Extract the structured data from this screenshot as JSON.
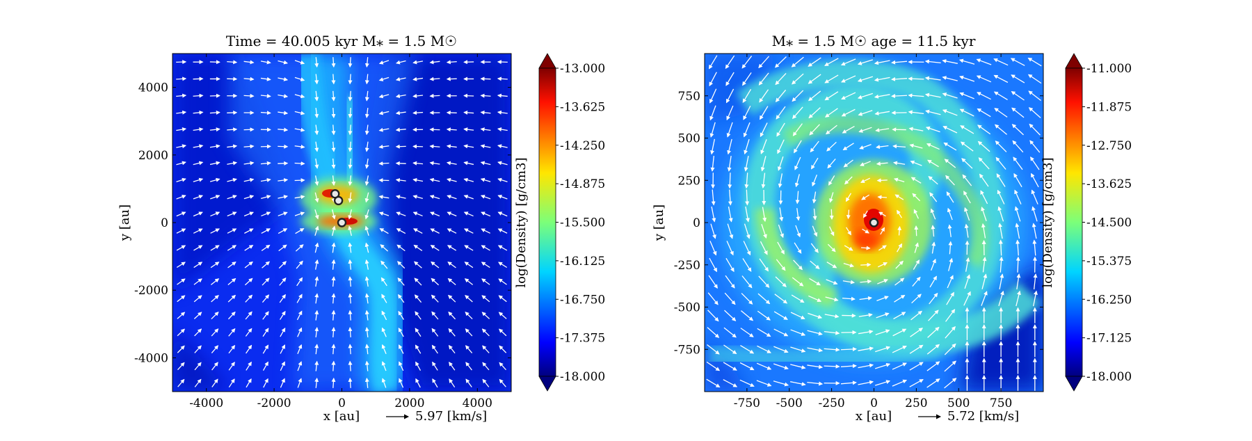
{
  "chart_data": [
    {
      "type": "heatmap",
      "title": "Time = 40.005 kyr    M$_*$ = 1.5 M$_\\odot$",
      "title_display": "Time = 40.005 kyr    M⁎ = 1.5 M☉",
      "xlabel": "x [au]",
      "ylabel": "y [au]",
      "xlim": [
        -5000,
        5000
      ],
      "ylim": [
        -5000,
        5000
      ],
      "xticks": [
        -4000,
        -2000,
        0,
        2000,
        4000
      ],
      "yticks": [
        -4000,
        -2000,
        0,
        2000,
        4000
      ],
      "xtick_labels": [
        "-4000",
        "-2000",
        "0",
        "2000",
        "4000"
      ],
      "ytick_labels": [
        "-4000",
        "-2000",
        "0",
        "2000",
        "4000"
      ],
      "vector_key_label": "5.97 [km/s]",
      "colorbar": {
        "label": "log(Density) [g/cm3]",
        "min": -18.0,
        "max": -13.0,
        "ticks": [
          "-13.000",
          "-13.625",
          "-14.250",
          "-14.875",
          "-15.500",
          "-16.125",
          "-16.750",
          "-17.375",
          "-18.000"
        ],
        "colormap": "jet"
      },
      "structures": [
        {
          "kind": "filament",
          "x": [
            -200,
            -150,
            0,
            100,
            500,
            900,
            1200,
            1400
          ],
          "y": [
            5000,
            3000,
            1000,
            0,
            -1000,
            -2000,
            -3000,
            -5000
          ],
          "width": 1200,
          "value": -16.2
        },
        {
          "kind": "filament",
          "x": [
            -600,
            -400,
            -200,
            0
          ],
          "y": [
            5000,
            3000,
            2000,
            1000
          ],
          "width": 700,
          "value": -16.0
        },
        {
          "kind": "clump",
          "x": -150,
          "y": 800,
          "r": 450,
          "value": -14.3
        },
        {
          "kind": "clump",
          "x": 0,
          "y": 0,
          "r": 400,
          "value": -14.0
        },
        {
          "kind": "clump",
          "x": 1200,
          "y": -1100,
          "r": 500,
          "value": -16.2
        }
      ],
      "sinks": [
        {
          "x": -200,
          "y": 850
        },
        {
          "x": -100,
          "y": 650
        },
        {
          "x": 0,
          "y": 0
        }
      ],
      "flow": "infall"
    },
    {
      "type": "heatmap",
      "title": "M$_*$ = 1.5 M$_\\odot$        age = 11.5 kyr",
      "title_display": "M⁎ = 1.5 M☉          age = 11.5 kyr",
      "xlabel": "x [au]",
      "ylabel": "y [au]",
      "xlim": [
        -1000,
        1000
      ],
      "ylim": [
        -1000,
        1000
      ],
      "xticks": [
        -750,
        -500,
        -250,
        0,
        250,
        500,
        750
      ],
      "yticks": [
        -750,
        -500,
        -250,
        0,
        250,
        500,
        750
      ],
      "xtick_labels": [
        "-750",
        "-500",
        "-250",
        "0",
        "250",
        "500",
        "750"
      ],
      "ytick_labels": [
        "-750",
        "-500",
        "-250",
        "0",
        "250",
        "500",
        "750"
      ],
      "vector_key_label": "5.72 [km/s]",
      "colorbar": {
        "label": "log(Density) [g/cm3]",
        "min": -18.0,
        "max": -11.0,
        "ticks": [
          "-11.000",
          "-11.875",
          "-12.750",
          "-13.625",
          "-14.500",
          "-15.375",
          "-16.250",
          "-17.125",
          "-18.000"
        ],
        "colormap": "jet"
      },
      "structures": [
        {
          "kind": "core",
          "x": 0,
          "y": 0,
          "r": 150,
          "value": -12.0
        },
        {
          "kind": "disk",
          "x": 0,
          "y": 0,
          "r": 300,
          "value": -13.8
        },
        {
          "kind": "spiral",
          "arms": 2,
          "value": -14.6
        },
        {
          "kind": "background",
          "value": -16.0
        }
      ],
      "sinks": [
        {
          "x": 0,
          "y": 0
        }
      ],
      "flow": "rotation"
    }
  ]
}
